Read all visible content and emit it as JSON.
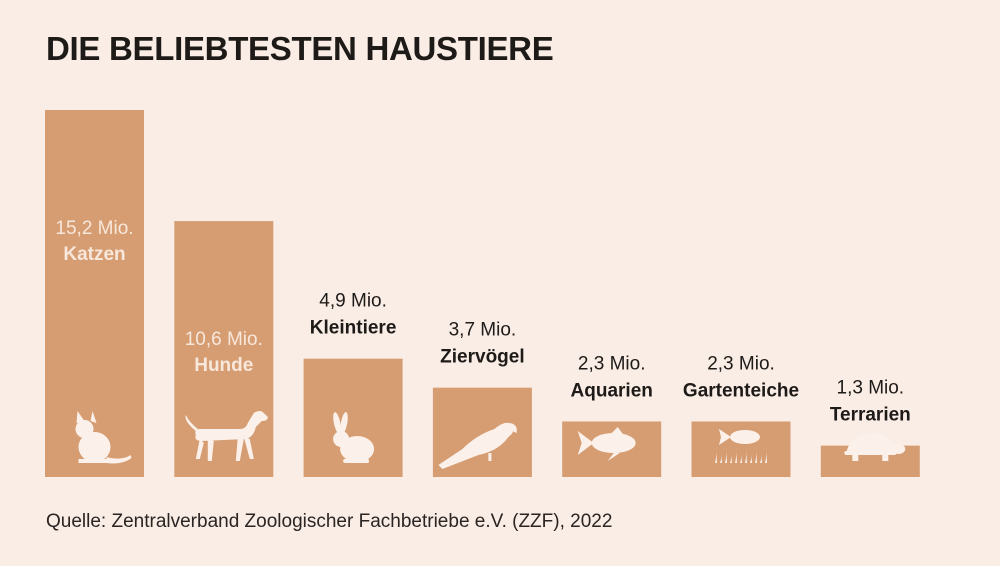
{
  "title": "DIE BELIEBTESTEN HAUSTIERE",
  "source": "Quelle: Zentralverband Zoologischer Fachbetriebe e.V. (ZZF), 2022",
  "colors": {
    "background": "#f9ede6",
    "bar": "#d69d72",
    "label_inside": "#f8e7db",
    "label_outside": "#1e1a18",
    "icon": "#fbf1ea"
  },
  "chart_data": {
    "type": "bar",
    "unit": "Mio.",
    "categories": [
      "Katzen",
      "Hunde",
      "Kleintiere",
      "Ziervögel",
      "Aquarien",
      "Gartenteiche",
      "Terrarien"
    ],
    "values": [
      15.2,
      10.6,
      4.9,
      3.7,
      2.3,
      2.3,
      1.3
    ],
    "value_labels": [
      "15,2 Mio.",
      "10,6 Mio.",
      "4,9 Mio.",
      "3,7 Mio.",
      "2,3 Mio.",
      "2,3 Mio.",
      "1,3 Mio."
    ],
    "icons": [
      "cat-icon",
      "dog-icon",
      "rabbit-icon",
      "parrot-icon",
      "fish-icon",
      "pond-fish-icon",
      "turtle-icon"
    ],
    "title": "DIE BELIEBTESTEN HAUSTIERE",
    "xlabel": "",
    "ylabel": "",
    "ylim": [
      0,
      15.2
    ],
    "grid": false,
    "legend": "none"
  }
}
